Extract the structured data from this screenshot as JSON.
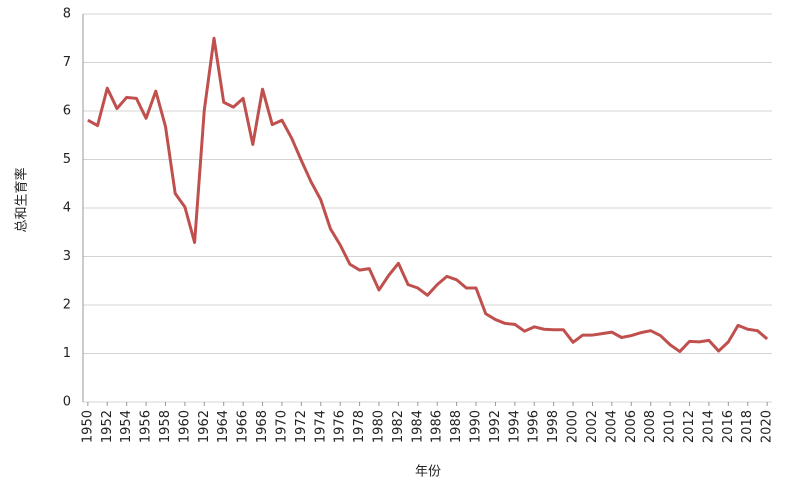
{
  "chart_data": {
    "type": "line",
    "ylabel": "总和生育率",
    "xlabel": "年份",
    "x": [
      1950,
      1951,
      1952,
      1953,
      1954,
      1955,
      1956,
      1957,
      1958,
      1959,
      1960,
      1961,
      1962,
      1963,
      1964,
      1965,
      1966,
      1967,
      1968,
      1969,
      1970,
      1971,
      1972,
      1973,
      1974,
      1975,
      1976,
      1977,
      1978,
      1979,
      1980,
      1981,
      1982,
      1983,
      1984,
      1985,
      1986,
      1987,
      1988,
      1989,
      1990,
      1991,
      1992,
      1993,
      1994,
      1995,
      1996,
      1997,
      1998,
      1999,
      2000,
      2001,
      2002,
      2003,
      2004,
      2005,
      2006,
      2007,
      2008,
      2009,
      2010,
      2011,
      2012,
      2013,
      2014,
      2015,
      2016,
      2017,
      2018,
      2019,
      2020
    ],
    "values": [
      5.81,
      5.7,
      6.47,
      6.05,
      6.28,
      6.26,
      5.85,
      6.41,
      5.68,
      4.3,
      4.02,
      3.29,
      6.02,
      7.5,
      6.18,
      6.08,
      6.26,
      5.31,
      6.45,
      5.72,
      5.81,
      5.44,
      4.98,
      4.54,
      4.17,
      3.57,
      3.24,
      2.84,
      2.72,
      2.75,
      2.31,
      2.61,
      2.86,
      2.42,
      2.35,
      2.2,
      2.42,
      2.59,
      2.52,
      2.35,
      2.35,
      1.82,
      1.7,
      1.62,
      1.6,
      1.46,
      1.55,
      1.5,
      1.49,
      1.49,
      1.23,
      1.38,
      1.38,
      1.41,
      1.44,
      1.33,
      1.37,
      1.43,
      1.47,
      1.37,
      1.18,
      1.04,
      1.25,
      1.24,
      1.27,
      1.05,
      1.24,
      1.58,
      1.5,
      1.47,
      1.3
    ],
    "color": "#c0504d",
    "xlim": [
      1949.5,
      2020.5
    ],
    "xticks": [
      1950,
      1952,
      1954,
      1956,
      1958,
      1960,
      1962,
      1964,
      1966,
      1968,
      1970,
      1972,
      1974,
      1976,
      1978,
      1980,
      1982,
      1984,
      1986,
      1988,
      1990,
      1992,
      1994,
      1996,
      1998,
      2000,
      2002,
      2004,
      2006,
      2008,
      2010,
      2012,
      2014,
      2016,
      2018,
      2020
    ],
    "ylim": [
      0,
      8
    ],
    "yticks": [
      0,
      1,
      2,
      3,
      4,
      5,
      6,
      7,
      8
    ],
    "grid": true
  }
}
